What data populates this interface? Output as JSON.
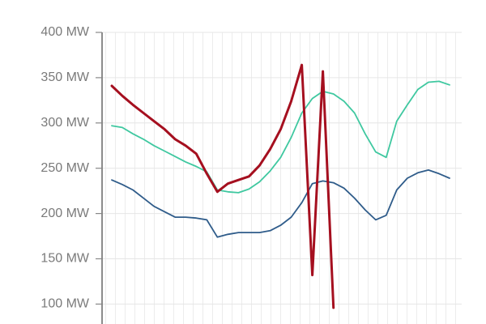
{
  "chart_data": {
    "type": "line",
    "ylim": [
      78,
      400
    ],
    "yticks": [
      {
        "value": 100,
        "label": "100 MW"
      },
      {
        "value": 150,
        "label": "150 MW"
      },
      {
        "value": 200,
        "label": "200 MW"
      },
      {
        "value": 250,
        "label": "250 MW"
      },
      {
        "value": 300,
        "label": "300 MW"
      },
      {
        "value": 350,
        "label": "350 MW"
      },
      {
        "value": 400,
        "label": "400 MW"
      }
    ],
    "grid": true,
    "series": [
      {
        "color": "#2f5c8a",
        "values": [
          237,
          232,
          226,
          217,
          208,
          202,
          196,
          196,
          195,
          193,
          174,
          177,
          179,
          179,
          179,
          181,
          187,
          196,
          212,
          233,
          236,
          234,
          228,
          217,
          204,
          193,
          198,
          226,
          239,
          245,
          248,
          244,
          239
        ]
      },
      {
        "color": "#3fc8a0",
        "values": [
          297,
          295,
          288,
          282,
          275,
          269,
          263,
          257,
          252,
          246,
          226,
          224,
          223,
          227,
          235,
          247,
          262,
          284,
          311,
          327,
          335,
          332,
          324,
          311,
          288,
          268,
          262,
          302,
          320,
          337,
          345,
          346,
          342
        ]
      },
      {
        "color": "#a50f1f",
        "values": [
          341,
          330,
          320,
          311,
          302,
          293,
          282,
          275,
          266,
          244,
          224,
          233,
          237,
          241,
          253,
          271,
          293,
          324,
          364,
          132,
          357,
          96,
          null,
          null,
          null,
          null,
          null,
          null,
          null,
          null,
          null,
          null,
          null
        ]
      }
    ]
  }
}
